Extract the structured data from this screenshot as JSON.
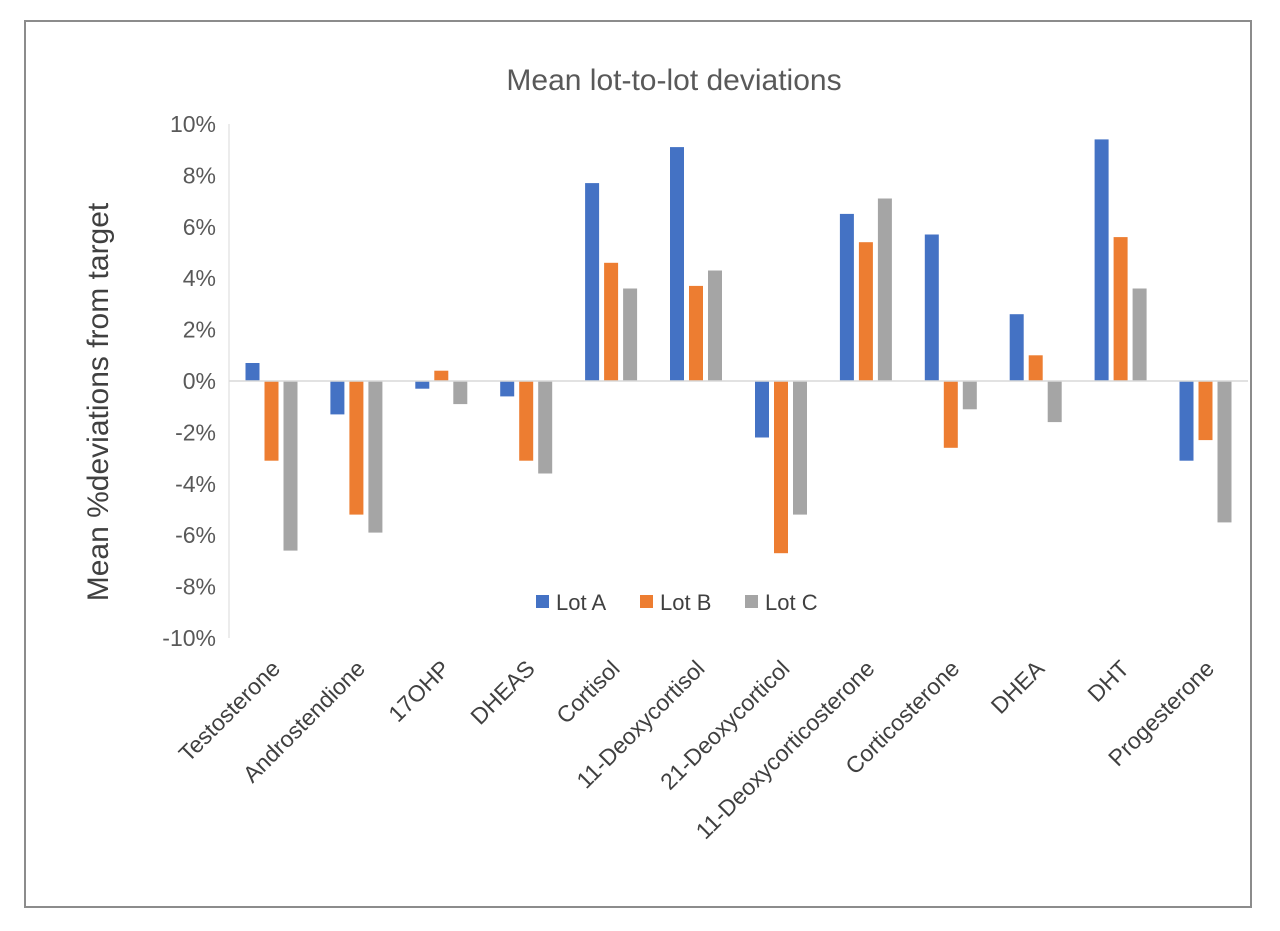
{
  "chart_data": {
    "type": "bar",
    "title": "Mean lot-to-lot deviations",
    "xlabel": "",
    "ylabel": "Mean %deviations from target",
    "ylim": [
      -10,
      10
    ],
    "ytick_step": 2,
    "ytick_labels": [
      "10%",
      "8%",
      "6%",
      "4%",
      "2%",
      "0%",
      "-2%",
      "-4%",
      "-6%",
      "-8%",
      "-10%"
    ],
    "grid": false,
    "legend_position": "bottom-center-inside",
    "categories": [
      "Testosterone",
      "Androstendione",
      "17OHP",
      "DHEAS",
      "Cortisol",
      "11-Deoxycortisol",
      "21-Deoxycorticol",
      "11-Deoxycorticosterone",
      "Corticosterone",
      "DHEA",
      "DHT",
      "Progesterone"
    ],
    "series": [
      {
        "name": "Lot A",
        "color": "#4472c4",
        "values": [
          0.7,
          -1.3,
          -0.3,
          -0.6,
          7.7,
          9.1,
          -2.2,
          6.5,
          5.7,
          2.6,
          9.4,
          -3.1
        ]
      },
      {
        "name": "Lot B",
        "color": "#ed7d31",
        "values": [
          -3.1,
          -5.2,
          0.4,
          -3.1,
          4.6,
          3.7,
          -6.7,
          5.4,
          -2.6,
          1.0,
          5.6,
          -2.3
        ]
      },
      {
        "name": "Lot C",
        "color": "#a5a5a5",
        "values": [
          -6.6,
          -5.9,
          -0.9,
          -3.6,
          3.6,
          4.3,
          -5.2,
          7.1,
          -1.1,
          -1.6,
          3.6,
          -5.5
        ]
      }
    ]
  }
}
